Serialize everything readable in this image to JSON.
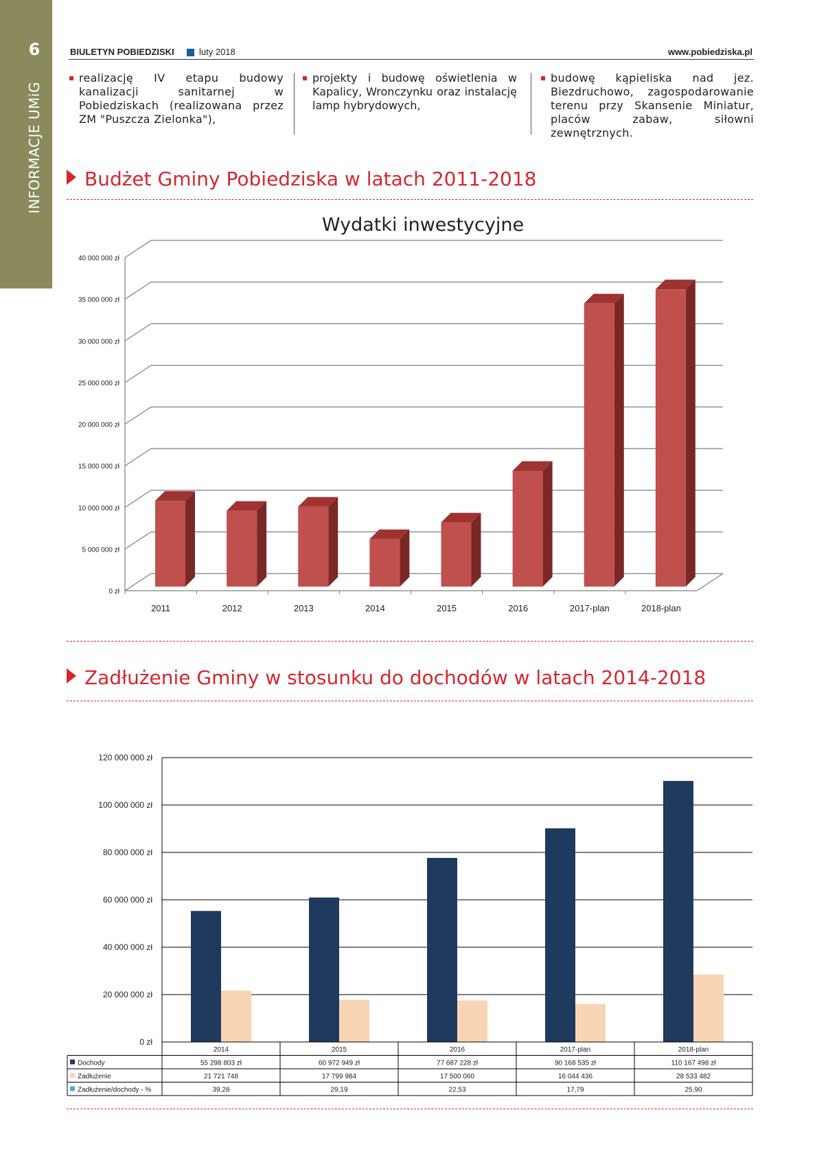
{
  "page": {
    "number": "6",
    "section": "INFORMACJE UMiG"
  },
  "header": {
    "publication": "BIULETYN POBIEDZISKI",
    "date": "luty 2018",
    "website": "www.pobiedziska.pl",
    "accent_color": "#1a5aa6"
  },
  "bullets": [
    "realizację IV etapu budowy kanalizacji sanitarnej w Pobiedziskach (realizowana przez ZM \"Puszcza Zielonka\"),",
    "projekty i budowę oświetlenia w Kapalicy, Wronczynku oraz instalację lamp hybrydowych,",
    "budowę kąpieliska nad jez. Biezdruchowo, zagospodarowanie terenu przy Skansenie Miniatur, placów zabaw, siłowni zewnętrznych."
  ],
  "section1": {
    "title": "Budżet Gminy Pobiedziska w latach 2011-2018"
  },
  "section2": {
    "title": "Zadłużenie Gminy w stosunku do dochodów w latach 2014-2018"
  },
  "colors": {
    "accent_red": "#d7262e",
    "sidebar": "#8a8a5c",
    "bar_red": "#c0504d",
    "bar_navy": "#1f3a5c",
    "bar_peach": "#f8d5b5",
    "legend_teal": "#4bacc6"
  },
  "chart_data": [
    {
      "type": "bar",
      "title": "Wydatki inwestycyjne",
      "categories": [
        "2011",
        "2012",
        "2013",
        "2014",
        "2015",
        "2016",
        "2017-plan",
        "2018-plan"
      ],
      "values": [
        10300000,
        9100000,
        9600000,
        5700000,
        7700000,
        13900000,
        34000000,
        35700000
      ],
      "ylim": [
        0,
        40000000
      ],
      "yticks": [
        "0 zł",
        "5 000 000 zł",
        "10 000 000 zł",
        "15 000 000 zł",
        "20 000 000 zł",
        "25 000 000 zł",
        "30 000 000 zł",
        "35 000 000 zł",
        "40 000 000 zł"
      ],
      "grid": true,
      "style": "3d"
    },
    {
      "type": "bar",
      "categories": [
        "2014",
        "2015",
        "2016",
        "2017-plan",
        "2018-plan"
      ],
      "series": [
        {
          "name": "Dochody",
          "values": [
            55298803,
            60972949,
            77687228,
            90168535,
            110167498
          ],
          "labels": [
            "55 298 803 zł",
            "60 972 949 zł",
            "77 687 228 zł",
            "90 168 535 zł",
            "110 167 498 zł"
          ]
        },
        {
          "name": "Zadłużenie",
          "values": [
            21721748,
            17799984,
            17500060,
            16044436,
            28533482
          ],
          "labels": [
            "21 721 748",
            "17 799 984",
            "17 500 060",
            "16 044 436",
            "28 533 482"
          ]
        },
        {
          "name": "Zadłużenie/dochody - %",
          "values": [
            39.28,
            29.19,
            22.53,
            17.79,
            25.9
          ],
          "labels": [
            "39,28",
            "29,19",
            "22,53",
            "17,79",
            "25,90"
          ]
        }
      ],
      "ylim": [
        0,
        120000000
      ],
      "yticks": [
        "0 zł",
        "20 000 000 zł",
        "40 000 000 zł",
        "60 000 000 zł",
        "80 000 000 zł",
        "100 000 000 zł",
        "120 000 000 zł"
      ],
      "grid": true,
      "data_table": true
    }
  ]
}
